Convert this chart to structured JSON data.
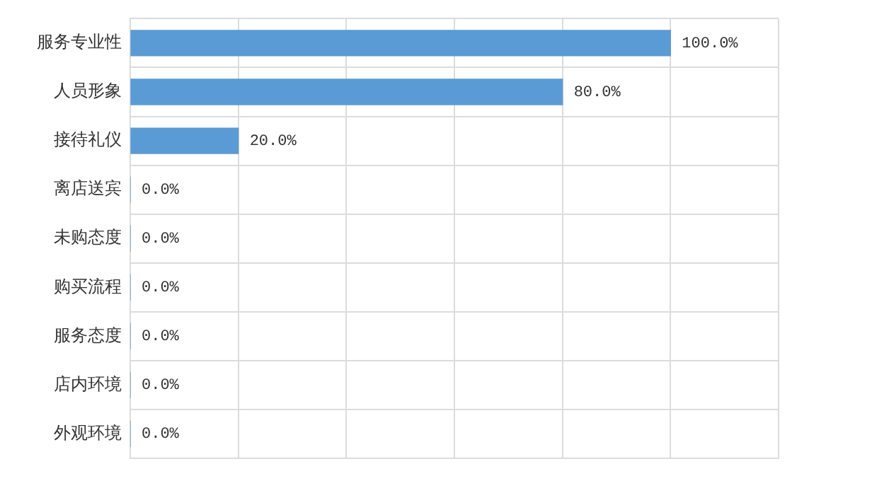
{
  "chart_data": {
    "type": "bar",
    "orientation": "horizontal",
    "categories": [
      "服务专业性",
      "人员形象",
      "接待礼仪",
      "离店送宾",
      "未购态度",
      "购买流程",
      "服务态度",
      "店内环境",
      "外观环境"
    ],
    "values": [
      100,
      80,
      20,
      0,
      0,
      0,
      0,
      0,
      0
    ],
    "value_labels": [
      "100.0%",
      "80.0%",
      "20.0%",
      "0.0%",
      "0.0%",
      "0.0%",
      "0.0%",
      "0.0%",
      "0.0%"
    ],
    "color": "#5b9bd5",
    "xlim": [
      0,
      120
    ],
    "xticks": [
      {
        "value": 0,
        "label": null
      },
      {
        "value": 20,
        "label": null
      },
      {
        "value": 40,
        "label": null
      },
      {
        "value": 60,
        "label": null
      },
      {
        "value": 80,
        "label": null
      },
      {
        "value": 100,
        "label": null
      },
      {
        "value": 120,
        "label": null
      }
    ],
    "tick_labels": "y",
    "grid": true,
    "legend": false
  }
}
